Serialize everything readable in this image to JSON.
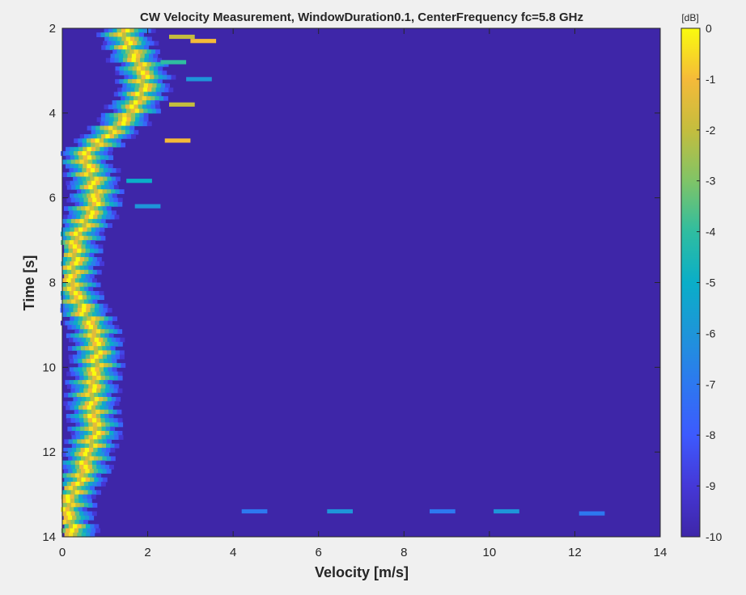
{
  "chart_data": {
    "type": "heatmap",
    "title": "CW Velocity Measurement, WindowDuration0.1, CenterFrequency fc=5.8 GHz",
    "xlabel": "Velocity [m/s]",
    "ylabel": "Time [s]",
    "xlim": [
      0,
      14
    ],
    "ylim": [
      2,
      14
    ],
    "y_direction": "reversed",
    "xticks": [
      "0",
      "2",
      "4",
      "6",
      "8",
      "10",
      "12",
      "14"
    ],
    "yticks": [
      "2",
      "4",
      "6",
      "8",
      "10",
      "12",
      "14"
    ],
    "colorbar": {
      "label": "[dB]",
      "range": [
        -10,
        0
      ],
      "ticks": [
        "0",
        "-1",
        "-2",
        "-3",
        "-4",
        "-5",
        "-6",
        "-7",
        "-8",
        "-9",
        "-10"
      ],
      "colormap": "parula"
    },
    "ridge": {
      "description_of_values": "time [s] vs velocity [m/s] of peak (0 dB) return",
      "time": [
        2.0,
        2.5,
        3.0,
        3.5,
        4.0,
        4.5,
        5.0,
        5.5,
        6.0,
        6.5,
        7.0,
        7.5,
        8.0,
        8.5,
        9.0,
        9.5,
        10.0,
        10.5,
        11.0,
        11.5,
        12.0,
        12.5,
        13.0,
        13.5,
        14.0
      ],
      "velocity": [
        1.4,
        1.6,
        1.9,
        1.9,
        1.6,
        1.1,
        0.5,
        0.7,
        0.8,
        0.6,
        0.3,
        0.3,
        0.2,
        0.4,
        0.7,
        0.8,
        0.8,
        0.7,
        0.7,
        0.8,
        0.6,
        0.5,
        0.2,
        0.1,
        0.3
      ]
    },
    "spurs": [
      {
        "time": 2.2,
        "velocity": 2.8,
        "value_db": -2
      },
      {
        "time": 2.3,
        "velocity": 3.3,
        "value_db": -1
      },
      {
        "time": 2.8,
        "velocity": 2.6,
        "value_db": -4
      },
      {
        "time": 3.2,
        "velocity": 3.2,
        "value_db": -6
      },
      {
        "time": 3.8,
        "velocity": 2.8,
        "value_db": -2
      },
      {
        "time": 4.65,
        "velocity": 2.7,
        "value_db": -1
      },
      {
        "time": 5.6,
        "velocity": 1.8,
        "value_db": -5
      },
      {
        "time": 6.2,
        "velocity": 2.0,
        "value_db": -6
      },
      {
        "time": 13.4,
        "velocity": 4.5,
        "value_db": -7
      },
      {
        "time": 13.4,
        "velocity": 6.5,
        "value_db": -6
      },
      {
        "time": 13.4,
        "velocity": 8.9,
        "value_db": -7
      },
      {
        "time": 13.4,
        "velocity": 10.4,
        "value_db": -6
      },
      {
        "time": 13.45,
        "velocity": 12.4,
        "value_db": -7
      }
    ],
    "colors": {
      "background": "#3e26a8",
      "figure": "#f0f0f0"
    }
  }
}
